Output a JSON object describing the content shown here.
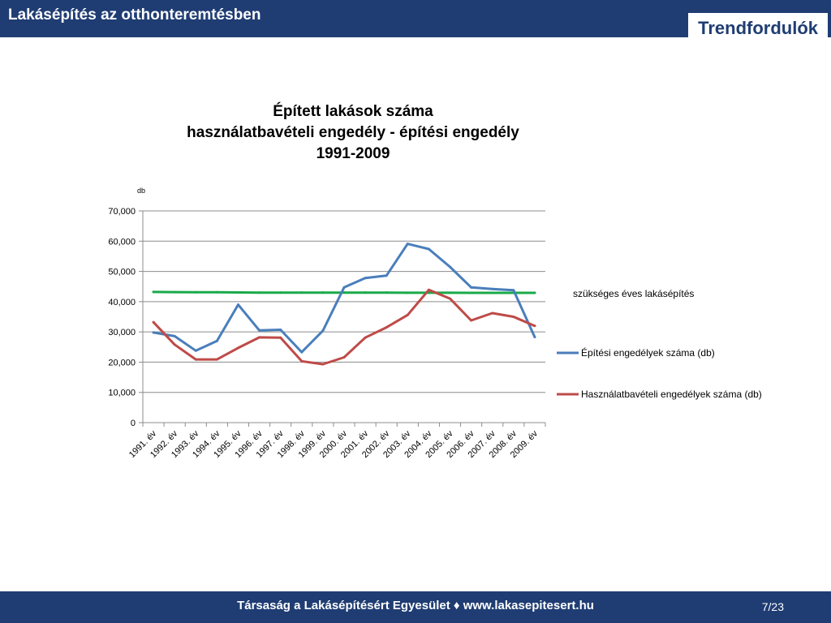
{
  "header": {
    "title": "Lakásépítés az otthonteremtésben",
    "section": "Trendfordulók"
  },
  "chart_data": {
    "type": "line",
    "title_lines": [
      "Épített lakások száma",
      "használatbavételi engedély - építési engedély",
      "1991-2009"
    ],
    "ylabel": "db",
    "ylim": [
      0,
      70000
    ],
    "yticks": [
      "0",
      "10,000",
      "20,000",
      "30,000",
      "40,000",
      "50,000",
      "60,000",
      "70,000"
    ],
    "grid": true,
    "legend_position": "right",
    "categories": [
      "1991. év",
      "1992. év",
      "1993. év",
      "1994. év",
      "1995. év",
      "1996. év",
      "1997. év",
      "1998. év",
      "1999. év",
      "2000. év",
      "2001. év",
      "2002. év",
      "2003. év",
      "2004. év",
      "2005. év",
      "2006. év",
      "2007. év",
      "2008. év",
      "2009. év"
    ],
    "series": [
      {
        "name": "szükséges éves lakásépítés",
        "color": "#1aaa4a",
        "values": [
          43200,
          43150,
          43100,
          43100,
          43050,
          43000,
          43000,
          43000,
          43000,
          43000,
          43000,
          43000,
          42950,
          42950,
          42950,
          42900,
          42900,
          42900,
          42900
        ]
      },
      {
        "name": "Építési engedélyek száma (db)",
        "color": "#4a7ebb",
        "values": [
          29800,
          28600,
          23800,
          27000,
          39000,
          30500,
          30700,
          23300,
          30400,
          44700,
          47800,
          48600,
          59100,
          57400,
          51500,
          44700,
          44200,
          43800,
          28300
        ]
      },
      {
        "name": "Használatbavételi engedélyek száma (db)",
        "color": "#be4b48",
        "values": [
          33200,
          25800,
          20900,
          20900,
          24700,
          28200,
          28100,
          20300,
          19300,
          21600,
          28100,
          31500,
          35600,
          43900,
          41000,
          33800,
          36200,
          35000,
          32000
        ]
      }
    ]
  },
  "footer": {
    "text": "Társaság a Lakásépítésért Egyesület ♦ www.lakasepitesert.hu",
    "page": "7/23"
  }
}
